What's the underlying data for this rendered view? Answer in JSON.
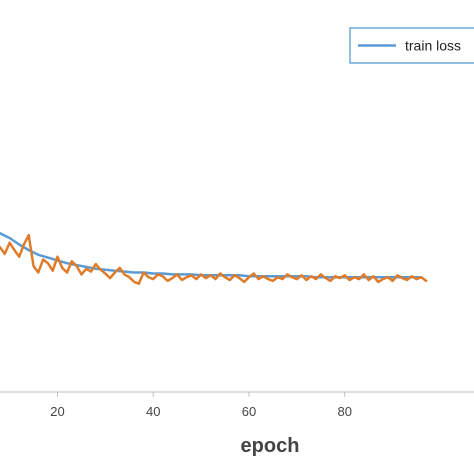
{
  "chart_data": {
    "type": "line",
    "title": "",
    "xlabel": "epoch",
    "ylabel": "",
    "xlim": [
      8,
      107
    ],
    "ylim": [
      0.0,
      0.42
    ],
    "grid": false,
    "legend_position": "top-right",
    "x_ticks": [
      20,
      40,
      60,
      80
    ],
    "x_tick_labels": [
      "20",
      "40",
      "60",
      "80"
    ],
    "series": [
      {
        "name": "train loss",
        "color": "#5b9bd5",
        "x": [
          8,
          10,
          12,
          14,
          16,
          18,
          20,
          22,
          24,
          26,
          28,
          30,
          32,
          34,
          36,
          38,
          40,
          42,
          44,
          46,
          48,
          50,
          52,
          54,
          56,
          58,
          60,
          62,
          64,
          66,
          68,
          70,
          72,
          74,
          76,
          78,
          80,
          82,
          84,
          86,
          88,
          90,
          92,
          94,
          96
        ],
        "values": [
          0.17,
          0.165,
          0.158,
          0.152,
          0.147,
          0.144,
          0.141,
          0.138,
          0.136,
          0.134,
          0.132,
          0.131,
          0.13,
          0.129,
          0.128,
          0.128,
          0.127,
          0.127,
          0.126,
          0.126,
          0.126,
          0.125,
          0.125,
          0.125,
          0.125,
          0.125,
          0.124,
          0.124,
          0.124,
          0.124,
          0.124,
          0.124,
          0.124,
          0.123,
          0.123,
          0.123,
          0.123,
          0.123,
          0.123,
          0.123,
          0.123,
          0.123,
          0.123,
          0.123,
          0.123
        ]
      },
      {
        "name": "",
        "color": "#e07b2a",
        "x": [
          8,
          9,
          10,
          11,
          12,
          13,
          14,
          15,
          16,
          17,
          18,
          19,
          20,
          21,
          22,
          23,
          24,
          25,
          26,
          27,
          28,
          29,
          30,
          31,
          32,
          33,
          34,
          35,
          36,
          37,
          38,
          39,
          40,
          41,
          42,
          43,
          44,
          45,
          46,
          47,
          48,
          49,
          50,
          51,
          52,
          53,
          54,
          55,
          56,
          57,
          58,
          59,
          60,
          61,
          62,
          63,
          64,
          65,
          66,
          67,
          68,
          69,
          70,
          71,
          72,
          73,
          74,
          75,
          76,
          77,
          78,
          79,
          80,
          81,
          82,
          83,
          84,
          85,
          86,
          87,
          88,
          89,
          90,
          91,
          92,
          93,
          94,
          95,
          96,
          97
        ],
        "values": [
          0.155,
          0.148,
          0.16,
          0.152,
          0.145,
          0.158,
          0.168,
          0.135,
          0.128,
          0.142,
          0.138,
          0.13,
          0.145,
          0.133,
          0.128,
          0.14,
          0.135,
          0.126,
          0.132,
          0.129,
          0.137,
          0.131,
          0.127,
          0.122,
          0.128,
          0.133,
          0.126,
          0.123,
          0.118,
          0.116,
          0.128,
          0.123,
          0.121,
          0.126,
          0.124,
          0.119,
          0.122,
          0.126,
          0.12,
          0.123,
          0.125,
          0.121,
          0.126,
          0.122,
          0.125,
          0.121,
          0.127,
          0.123,
          0.12,
          0.125,
          0.122,
          0.118,
          0.123,
          0.127,
          0.121,
          0.124,
          0.121,
          0.119,
          0.123,
          0.121,
          0.126,
          0.123,
          0.121,
          0.125,
          0.12,
          0.124,
          0.121,
          0.126,
          0.122,
          0.119,
          0.124,
          0.122,
          0.125,
          0.12,
          0.123,
          0.121,
          0.126,
          0.12,
          0.124,
          0.118,
          0.121,
          0.123,
          0.119,
          0.125,
          0.122,
          0.12,
          0.124,
          0.121,
          0.123,
          0.119
        ]
      }
    ]
  }
}
